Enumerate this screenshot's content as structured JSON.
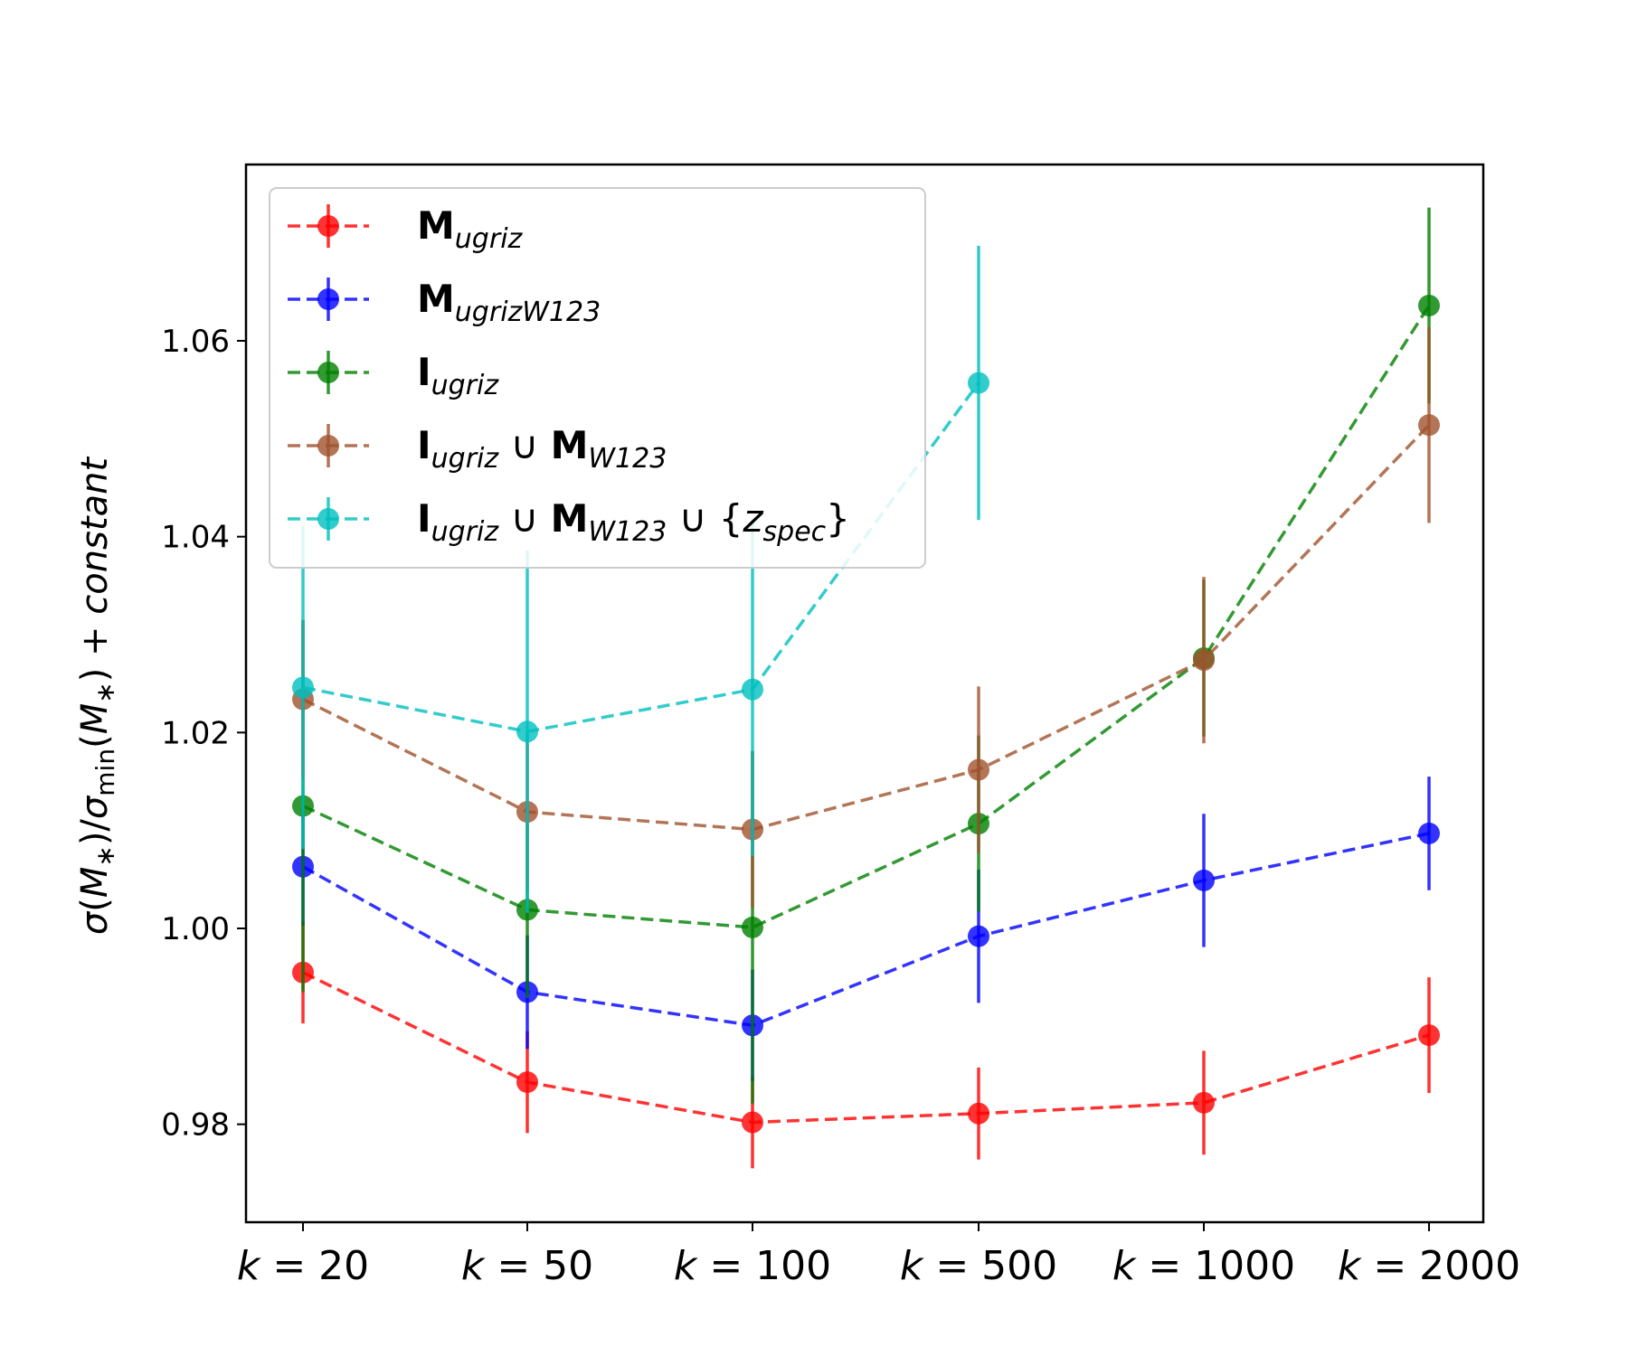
{
  "chart_data": {
    "type": "line",
    "title": "",
    "xlabel": "",
    "ylabel": {
      "sigma": "σ",
      "arg": "M",
      "star": "∗",
      "min_sub": "min",
      "suffix": "+ constant"
    },
    "categories": [
      "k = 20",
      "k = 50",
      "k = 100",
      "k = 500",
      "k = 1000",
      "k = 2000"
    ],
    "ylim": [
      0.97,
      1.078
    ],
    "yticks": [
      0.98,
      1.0,
      1.02,
      1.04,
      1.06
    ],
    "ytick_labels": [
      "0.98",
      "1.00",
      "1.02",
      "1.04",
      "1.06"
    ],
    "grid": false,
    "legend_position": "upper-left",
    "series": [
      {
        "name": "M_ugriz",
        "legend_main": "M",
        "legend_sub": "ugriz",
        "legend_rest": [],
        "color": "#ff0000",
        "values": [
          0.9955,
          0.9843,
          0.9802,
          0.9811,
          0.9822,
          0.9891
        ],
        "errors": [
          0.0052,
          0.0052,
          0.0047,
          0.0047,
          0.0053,
          0.0059
        ]
      },
      {
        "name": "M_ugrizW123",
        "legend_main": "M",
        "legend_sub": "ugrizW123",
        "legend_rest": [],
        "color": "#0000ff",
        "values": [
          1.0063,
          0.9935,
          0.9901,
          0.9992,
          1.0049,
          1.0097
        ],
        "errors": [
          0.006,
          0.0058,
          0.0057,
          0.0068,
          0.0068,
          0.0058
        ]
      },
      {
        "name": "I_ugriz",
        "legend_main": "I",
        "legend_sub": "ugriz",
        "legend_rest": [],
        "color": "#008000",
        "values": [
          1.0125,
          1.0019,
          1.0001,
          1.0107,
          1.0276,
          1.0636
        ],
        "errors": [
          0.019,
          0.009,
          0.018,
          0.009,
          0.008,
          0.01
        ]
      },
      {
        "name": "I_ugriz ∪ M_W123",
        "legend_main": "I",
        "legend_sub": "ugriz",
        "legend_rest": [
          {
            "op": " ∪ ",
            "main": "M",
            "sub": "W123"
          }
        ],
        "color": "#a0522d",
        "values": [
          1.0234,
          1.0119,
          1.0101,
          1.0162,
          1.0274,
          1.0514
        ],
        "errors": [
          0.008,
          0.008,
          0.008,
          0.0085,
          0.0085,
          0.01
        ]
      },
      {
        "name": "I_ugriz ∪ M_W123 ∪ {z_spec}",
        "legend_main": "I",
        "legend_sub": "ugriz",
        "legend_rest": [
          {
            "op": " ∪ ",
            "main": "M",
            "sub": "W123"
          }
        ],
        "legend_tail": {
          "op": " ∪ {",
          "z": "z",
          "sub": "spec",
          "close": "}"
        },
        "color": "#00bfbf",
        "values": [
          1.0246,
          1.0201,
          1.0244,
          1.0557,
          null,
          null
        ],
        "errors": [
          0.0165,
          0.0185,
          0.017,
          0.014,
          null,
          null
        ]
      }
    ]
  }
}
